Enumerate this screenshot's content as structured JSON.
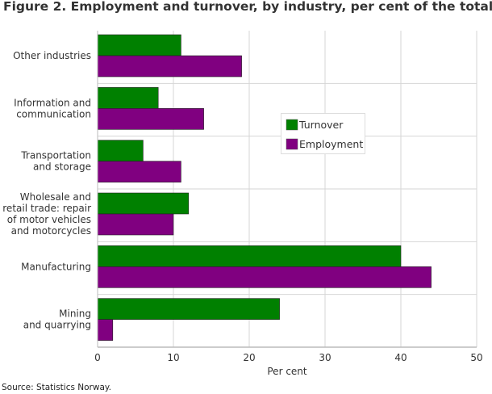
{
  "chart_data": {
    "type": "bar",
    "orientation": "horizontal",
    "title": "Figure 2. Employment and turnover, by industry, per cent of the total",
    "categories": [
      [
        "Other industries"
      ],
      [
        "Information and",
        "communication"
      ],
      [
        "Transportation",
        "and storage"
      ],
      [
        "Wholesale and",
        "retail trade: repair",
        "of motor vehicles",
        "and motorcycles"
      ],
      [
        "Manufacturing"
      ],
      [
        "Mining",
        "and quarrying"
      ]
    ],
    "series": [
      {
        "name": "Turnover",
        "color": "#008000",
        "values": [
          11,
          8,
          6,
          12,
          40,
          24
        ]
      },
      {
        "name": "Employment",
        "color": "#800080",
        "values": [
          19,
          14,
          11,
          10,
          44,
          2
        ]
      }
    ],
    "xlabel": "Per cent",
    "xlim": [
      0,
      50
    ],
    "xticks": [
      0,
      10,
      20,
      30,
      40,
      50
    ],
    "grid": true,
    "legend": "center-right"
  },
  "source": "Source: Statistics Norway."
}
